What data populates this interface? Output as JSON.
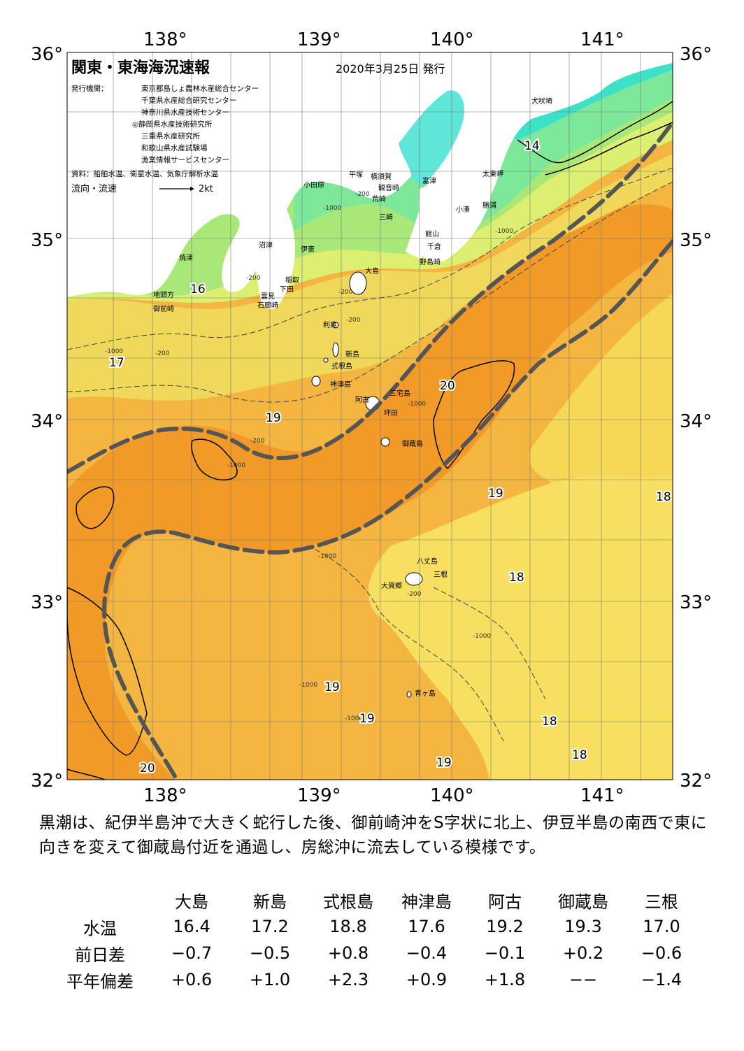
{
  "map": {
    "title": "関東・東海海況速報",
    "issue_date": "2020年3月25日 発行",
    "issuers_label": "発行機関：",
    "issuers": [
      "東京都島しょ農林水産総合センター",
      "千葉県水産総合研究センター",
      "神奈川県水産技術センター",
      "◎静岡県水産技術研究所",
      "三重県水産研究所",
      "和歌山県水産試験場",
      "漁業情報サービスセンター"
    ],
    "sources": "資料：船舶水温、衛星水温、気象庁解析水温",
    "flow_label": "流向・流速",
    "flow_scale": "2kt",
    "lon_labels": [
      "138°",
      "139°",
      "140°",
      "141°"
    ],
    "lat_labels": [
      "36°",
      "35°",
      "34°",
      "33°",
      "32°"
    ],
    "place_names": {
      "inubozaki": "犬吠埼",
      "taitomisaki": "太東岬",
      "katsuura": "勝浦",
      "kominato": "小湊",
      "futtsu": "富津",
      "yokosuka": "横須賀",
      "kannonzaki": "観音崎",
      "hiratsuka": "平塚",
      "odawara": "小田原",
      "araizaki": "荒崎",
      "misaki": "三崎",
      "tateyama": "館山",
      "chikura": "千倉",
      "nojimazaki": "野島崎",
      "numazu": "沼津",
      "ito": "伊東",
      "yaizu": "焼津",
      "inatori": "稲取",
      "shimoda": "下田",
      "kumomi": "雲見",
      "irozaki": "石廊崎",
      "jitokata": "地頭方",
      "omaezaki": "御前崎",
      "oshima": "大島",
      "toshima": "利島",
      "niijima": "新島",
      "shikinejima": "式根島",
      "kozushima": "神津島",
      "miyakejima": "三宅島",
      "ako": "阿古",
      "tsubota": "坪田",
      "mikurajima": "御蔵島",
      "hachijojima": "八丈島",
      "mitsune": "三根",
      "okago": "大賀郷",
      "aogashima": "青ヶ島"
    },
    "temperature_labels": [
      "14",
      "16",
      "17",
      "19",
      "20",
      "19",
      "19",
      "18",
      "18",
      "19",
      "19",
      "18",
      "18",
      "19",
      "20"
    ],
    "depth_labels": [
      "-200",
      "-1000"
    ]
  },
  "description": "黒潮は、紀伊半島沖で大きく蛇行した後、御前崎沖をS字状に北上、伊豆半島の南西で東に向きを変えて御蔵島付近を通過し、房総沖に流去している模様です。",
  "table": {
    "columns": [
      "大島",
      "新島",
      "式根島",
      "神津島",
      "阿古",
      "御蔵島",
      "三根"
    ],
    "rows": [
      {
        "label": "水温",
        "values": [
          "16.4",
          "17.2",
          "18.8",
          "17.6",
          "19.2",
          "19.3",
          "17.0"
        ]
      },
      {
        "label": "前日差",
        "values": [
          "−0.7",
          "−0.5",
          "+0.8",
          "−0.4",
          "−0.1",
          "+0.2",
          "−0.6"
        ]
      },
      {
        "label": "平年偏差",
        "values": [
          "+0.6",
          "+1.0",
          "+2.3",
          "+0.9",
          "+1.8",
          "−−",
          "−1.4"
        ]
      }
    ]
  },
  "colors": {
    "land": "#ffffff",
    "sea_14": "#3fe0c8",
    "sea_15": "#7ee89a",
    "sea_16": "#a8e878",
    "sea_17": "#dcef70",
    "sea_18": "#f7e060",
    "sea_19": "#f4b640",
    "sea_20": "#f29a28",
    "kuroshio_axis": "#555555"
  }
}
